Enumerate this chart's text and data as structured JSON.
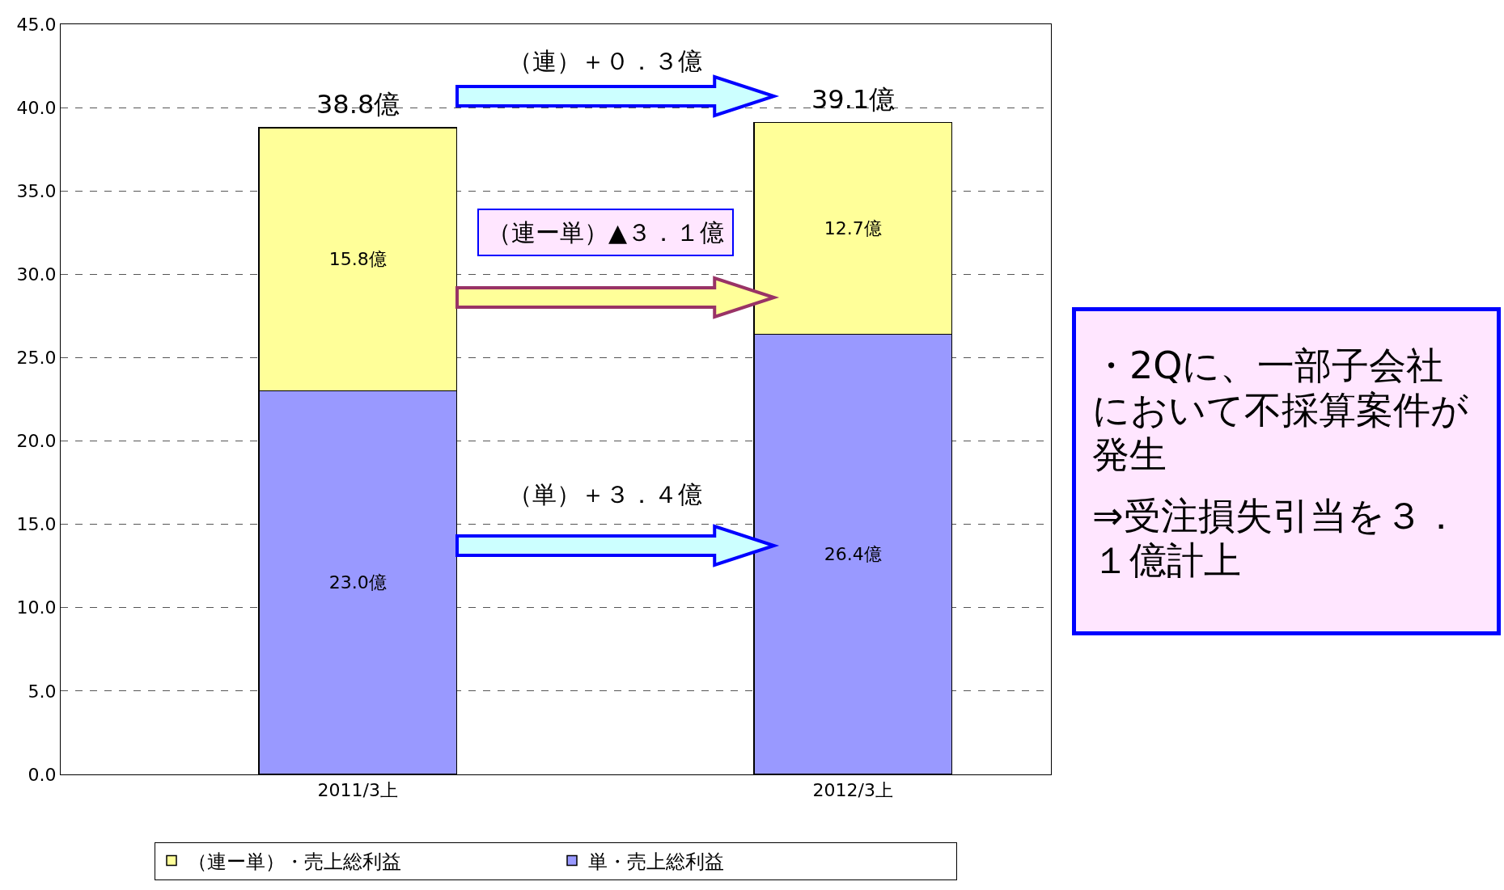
{
  "chart_data": {
    "type": "bar",
    "stacked": true,
    "categories": [
      "2011/3上",
      "2012/3上"
    ],
    "series": [
      {
        "name": "単・売上総利益",
        "color": "#9999ff",
        "values": [
          23.0,
          26.4
        ],
        "value_labels": [
          "23.0億",
          "26.4億"
        ]
      },
      {
        "name": "（連ー単）・売上総利益",
        "color": "#ffff99",
        "values": [
          15.8,
          12.7
        ],
        "value_labels": [
          "15.8億",
          "12.7億"
        ]
      }
    ],
    "totals": [
      "38.8億",
      "39.1億"
    ],
    "ylim": [
      0,
      45
    ],
    "yticks": [
      {
        "value": 0,
        "label": "0.0"
      },
      {
        "value": 5,
        "label": "5.0"
      },
      {
        "value": 10,
        "label": "10.0"
      },
      {
        "value": 15,
        "label": "15.0"
      },
      {
        "value": 20,
        "label": "20.0"
      },
      {
        "value": 25,
        "label": "25.0"
      },
      {
        "value": 30,
        "label": "30.0"
      },
      {
        "value": 35,
        "label": "35.0"
      },
      {
        "value": 40,
        "label": "40.0"
      },
      {
        "value": 45,
        "label": "45.0"
      }
    ],
    "grid": "y",
    "legend": "bottom",
    "annotations": [
      "（連）＋０．３億",
      "（連ー単）▲３．１億",
      "（単）＋３．４億",
      "・2Qに、一部子会社において不採算案件が発生",
      "⇒受注損失引当を３．１億計上"
    ]
  }
}
